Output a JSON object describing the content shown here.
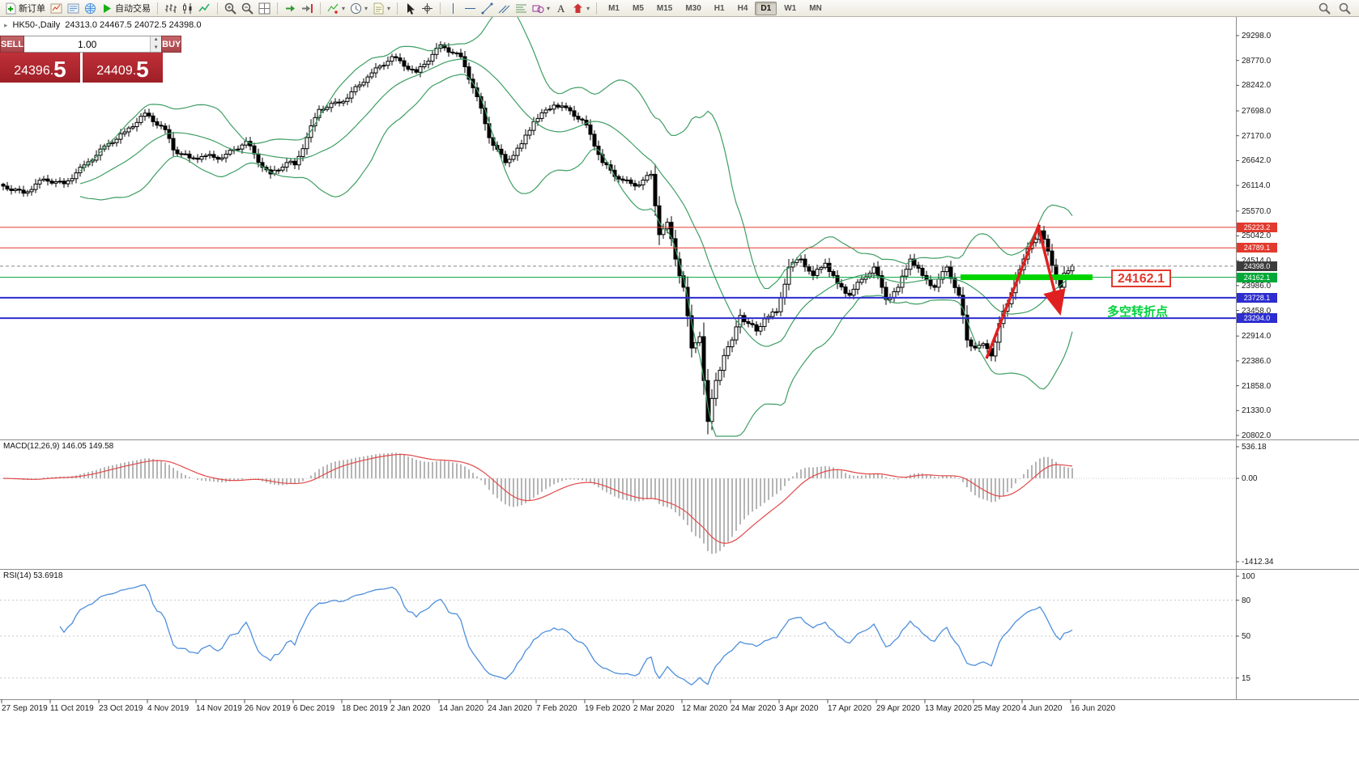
{
  "toolbar": {
    "items": [
      {
        "icon": "new-order-icon",
        "label": "新订单"
      },
      {
        "icon": "chart-window-icon"
      },
      {
        "icon": "profiles-icon"
      },
      {
        "icon": "market-watch-icon"
      },
      {
        "icon": "auto-trading-icon",
        "label": "自动交易"
      },
      {
        "sep": true
      },
      {
        "icon": "bar-chart-icon"
      },
      {
        "icon": "candlestick-chart-icon"
      },
      {
        "icon": "line-chart-icon"
      },
      {
        "sep": true
      },
      {
        "icon": "zoom-in-icon"
      },
      {
        "icon": "zoom-out-icon"
      },
      {
        "icon": "tile-windows-icon"
      },
      {
        "sep": true
      },
      {
        "icon": "auto-scroll-icon"
      },
      {
        "icon": "chart-shift-icon"
      },
      {
        "sep": true
      },
      {
        "icon": "indicators-icon",
        "dropdown": true
      },
      {
        "icon": "period-icon",
        "dropdown": true
      },
      {
        "icon": "templates-icon",
        "dropdown": true
      },
      {
        "sep": true
      },
      {
        "icon": "cursor-icon"
      },
      {
        "icon": "crosshair-icon"
      },
      {
        "sep": true
      },
      {
        "icon": "vertical-line-icon"
      },
      {
        "icon": "horizontal-line-icon"
      },
      {
        "icon": "trendline-icon"
      },
      {
        "icon": "channel-icon"
      },
      {
        "icon": "fibonacci-icon"
      },
      {
        "icon": "shapes-icon",
        "dropdown": true
      },
      {
        "icon": "text-icon"
      },
      {
        "icon": "arrows-icon",
        "dropdown": true
      },
      {
        "sep": true
      }
    ],
    "timeframes": [
      "M1",
      "M5",
      "M15",
      "M30",
      "H1",
      "H4",
      "D1",
      "W1",
      "MN"
    ],
    "active_timeframe": "D1",
    "right_icons": [
      "search-icon",
      "search-icon"
    ]
  },
  "chart_header": {
    "symbol": "HK50-,Daily",
    "ohlc_text": "24313.0 24467.5 24072.5 24398.0"
  },
  "trade_panel": {
    "sell_label": "SELL",
    "buy_label": "BUY",
    "volume": "1.00",
    "sell_price": "24396.",
    "sell_price_big": "5",
    "buy_price": "24409.",
    "buy_price_big": "5"
  },
  "macd": {
    "label": "MACD(12,26,9) 146.05 149.58",
    "axis_top": "536.18",
    "axis_zero": "0.00",
    "axis_bottom": "-1412.34"
  },
  "rsi": {
    "label": "RSI(14) 53.6918",
    "axis": [
      100,
      80,
      50,
      15
    ],
    "levels": [
      80,
      50,
      15
    ]
  },
  "annotations": {
    "level_label": "24162.1",
    "turning_point_text": "多空转折点",
    "arrow_color": "#e02020",
    "arrow_points": [
      [
        1218,
        443
      ],
      [
        1282,
        280
      ],
      [
        1307,
        380
      ]
    ]
  },
  "chart_data": {
    "type": "candlestick",
    "title": "HK50-,Daily",
    "ohlc_header": {
      "open": 24313.0,
      "high": 24467.5,
      "low": 24072.5,
      "close": 24398.0
    },
    "price_range": [
      20802.0,
      29298.0
    ],
    "y_ticks": [
      29298.0,
      28770.0,
      28242.0,
      27698.0,
      27170.0,
      26642.0,
      26114.0,
      25570.0,
      25042.0,
      24514.0,
      23986.0,
      23458.0,
      22914.0,
      22386.0,
      21858.0,
      21330.0,
      20802.0
    ],
    "x_labels": [
      "27 Sep 2019",
      "11 Oct 2019",
      "23 Oct 2019",
      "4 Nov 2019",
      "14 Nov 2019",
      "26 Nov 2019",
      "6 Dec 2019",
      "18 Dec 2019",
      "2 Jan 2020",
      "14 Jan 2020",
      "24 Jan 2020",
      "7 Feb 2020",
      "19 Feb 2020",
      "2 Mar 2020",
      "12 Mar 2020",
      "24 Mar 2020",
      "3 Apr 2020",
      "17 Apr 2020",
      "29 Apr 2020",
      "13 May 2020",
      "25 May 2020",
      "4 Jun 2020",
      "16 Jun 2020"
    ],
    "candle_count": 265,
    "anchors": [
      [
        0,
        26100
      ],
      [
        5,
        25950
      ],
      [
        10,
        26250
      ],
      [
        15,
        26150
      ],
      [
        20,
        26550
      ],
      [
        26,
        27000
      ],
      [
        30,
        27250
      ],
      [
        35,
        27650
      ],
      [
        40,
        27300
      ],
      [
        42,
        26870
      ],
      [
        46,
        26700
      ],
      [
        50,
        26750
      ],
      [
        54,
        26700
      ],
      [
        60,
        27050
      ],
      [
        64,
        26500
      ],
      [
        66,
        26360
      ],
      [
        70,
        26600
      ],
      [
        72,
        26550
      ],
      [
        78,
        27730
      ],
      [
        84,
        27900
      ],
      [
        90,
        28420
      ],
      [
        96,
        28850
      ],
      [
        102,
        28520
      ],
      [
        108,
        29100
      ],
      [
        113,
        28850
      ],
      [
        117,
        28000
      ],
      [
        120,
        27130
      ],
      [
        124,
        26600
      ],
      [
        128,
        27000
      ],
      [
        131,
        27470
      ],
      [
        136,
        27820
      ],
      [
        140,
        27700
      ],
      [
        144,
        27400
      ],
      [
        148,
        26600
      ],
      [
        152,
        26250
      ],
      [
        156,
        26100
      ],
      [
        160,
        26350
      ],
      [
        162,
        25070
      ],
      [
        164,
        25330
      ],
      [
        166,
        24550
      ],
      [
        168,
        23950
      ],
      [
        170,
        22660
      ],
      [
        172,
        22900
      ],
      [
        174,
        21100
      ],
      [
        176,
        21970
      ],
      [
        178,
        22500
      ],
      [
        180,
        22830
      ],
      [
        182,
        23350
      ],
      [
        184,
        23180
      ],
      [
        186,
        23020
      ],
      [
        188,
        23280
      ],
      [
        191,
        23430
      ],
      [
        194,
        24380
      ],
      [
        197,
        24550
      ],
      [
        200,
        24200
      ],
      [
        203,
        24460
      ],
      [
        206,
        24030
      ],
      [
        209,
        23780
      ],
      [
        212,
        24120
      ],
      [
        215,
        24380
      ],
      [
        218,
        23690
      ],
      [
        221,
        23950
      ],
      [
        224,
        24550
      ],
      [
        227,
        24200
      ],
      [
        230,
        23950
      ],
      [
        233,
        24380
      ],
      [
        236,
        23780
      ],
      [
        238,
        22830
      ],
      [
        240,
        22660
      ],
      [
        242,
        22750
      ],
      [
        244,
        22490
      ],
      [
        246,
        23180
      ],
      [
        248,
        23600
      ],
      [
        250,
        24120
      ],
      [
        252,
        24550
      ],
      [
        254,
        24900
      ],
      [
        256,
        25150
      ],
      [
        258,
        24720
      ],
      [
        260,
        24120
      ],
      [
        261,
        23950
      ],
      [
        262,
        24250
      ],
      [
        263,
        24300
      ],
      [
        264,
        24398
      ]
    ],
    "levels": [
      {
        "price": 25223.2,
        "line": "#e23a2e",
        "width": 1,
        "tag": "#e23a2e"
      },
      {
        "price": 24789.1,
        "line": "#e23a2e",
        "width": 1,
        "tag": "#e23a2e"
      },
      {
        "price": 24398.0,
        "line": "#888888",
        "width": 1,
        "dashed": true,
        "tag": "#3c3c3c",
        "current": true
      },
      {
        "price": 24162.1,
        "line": "#00a63c",
        "width": 1,
        "tag": "#00a838",
        "highlight_x": [
          1186,
          1349
        ]
      },
      {
        "price": 23728.1,
        "line": "#2d2dd0",
        "width": 2,
        "tag": "#2d2dd0"
      },
      {
        "price": 23294.0,
        "line": "#2d2dd0",
        "width": 2,
        "tag": "#2d2dd0"
      }
    ],
    "indicators": {
      "bollinger": {
        "period": 20,
        "deviation": 2
      },
      "macd": {
        "fast": 12,
        "slow": 26,
        "signal": 9,
        "values": [
          146.05,
          149.58
        ],
        "range": [
          -1412.34,
          536.18
        ]
      },
      "rsi": {
        "period": 14,
        "value": 53.6918
      }
    }
  }
}
